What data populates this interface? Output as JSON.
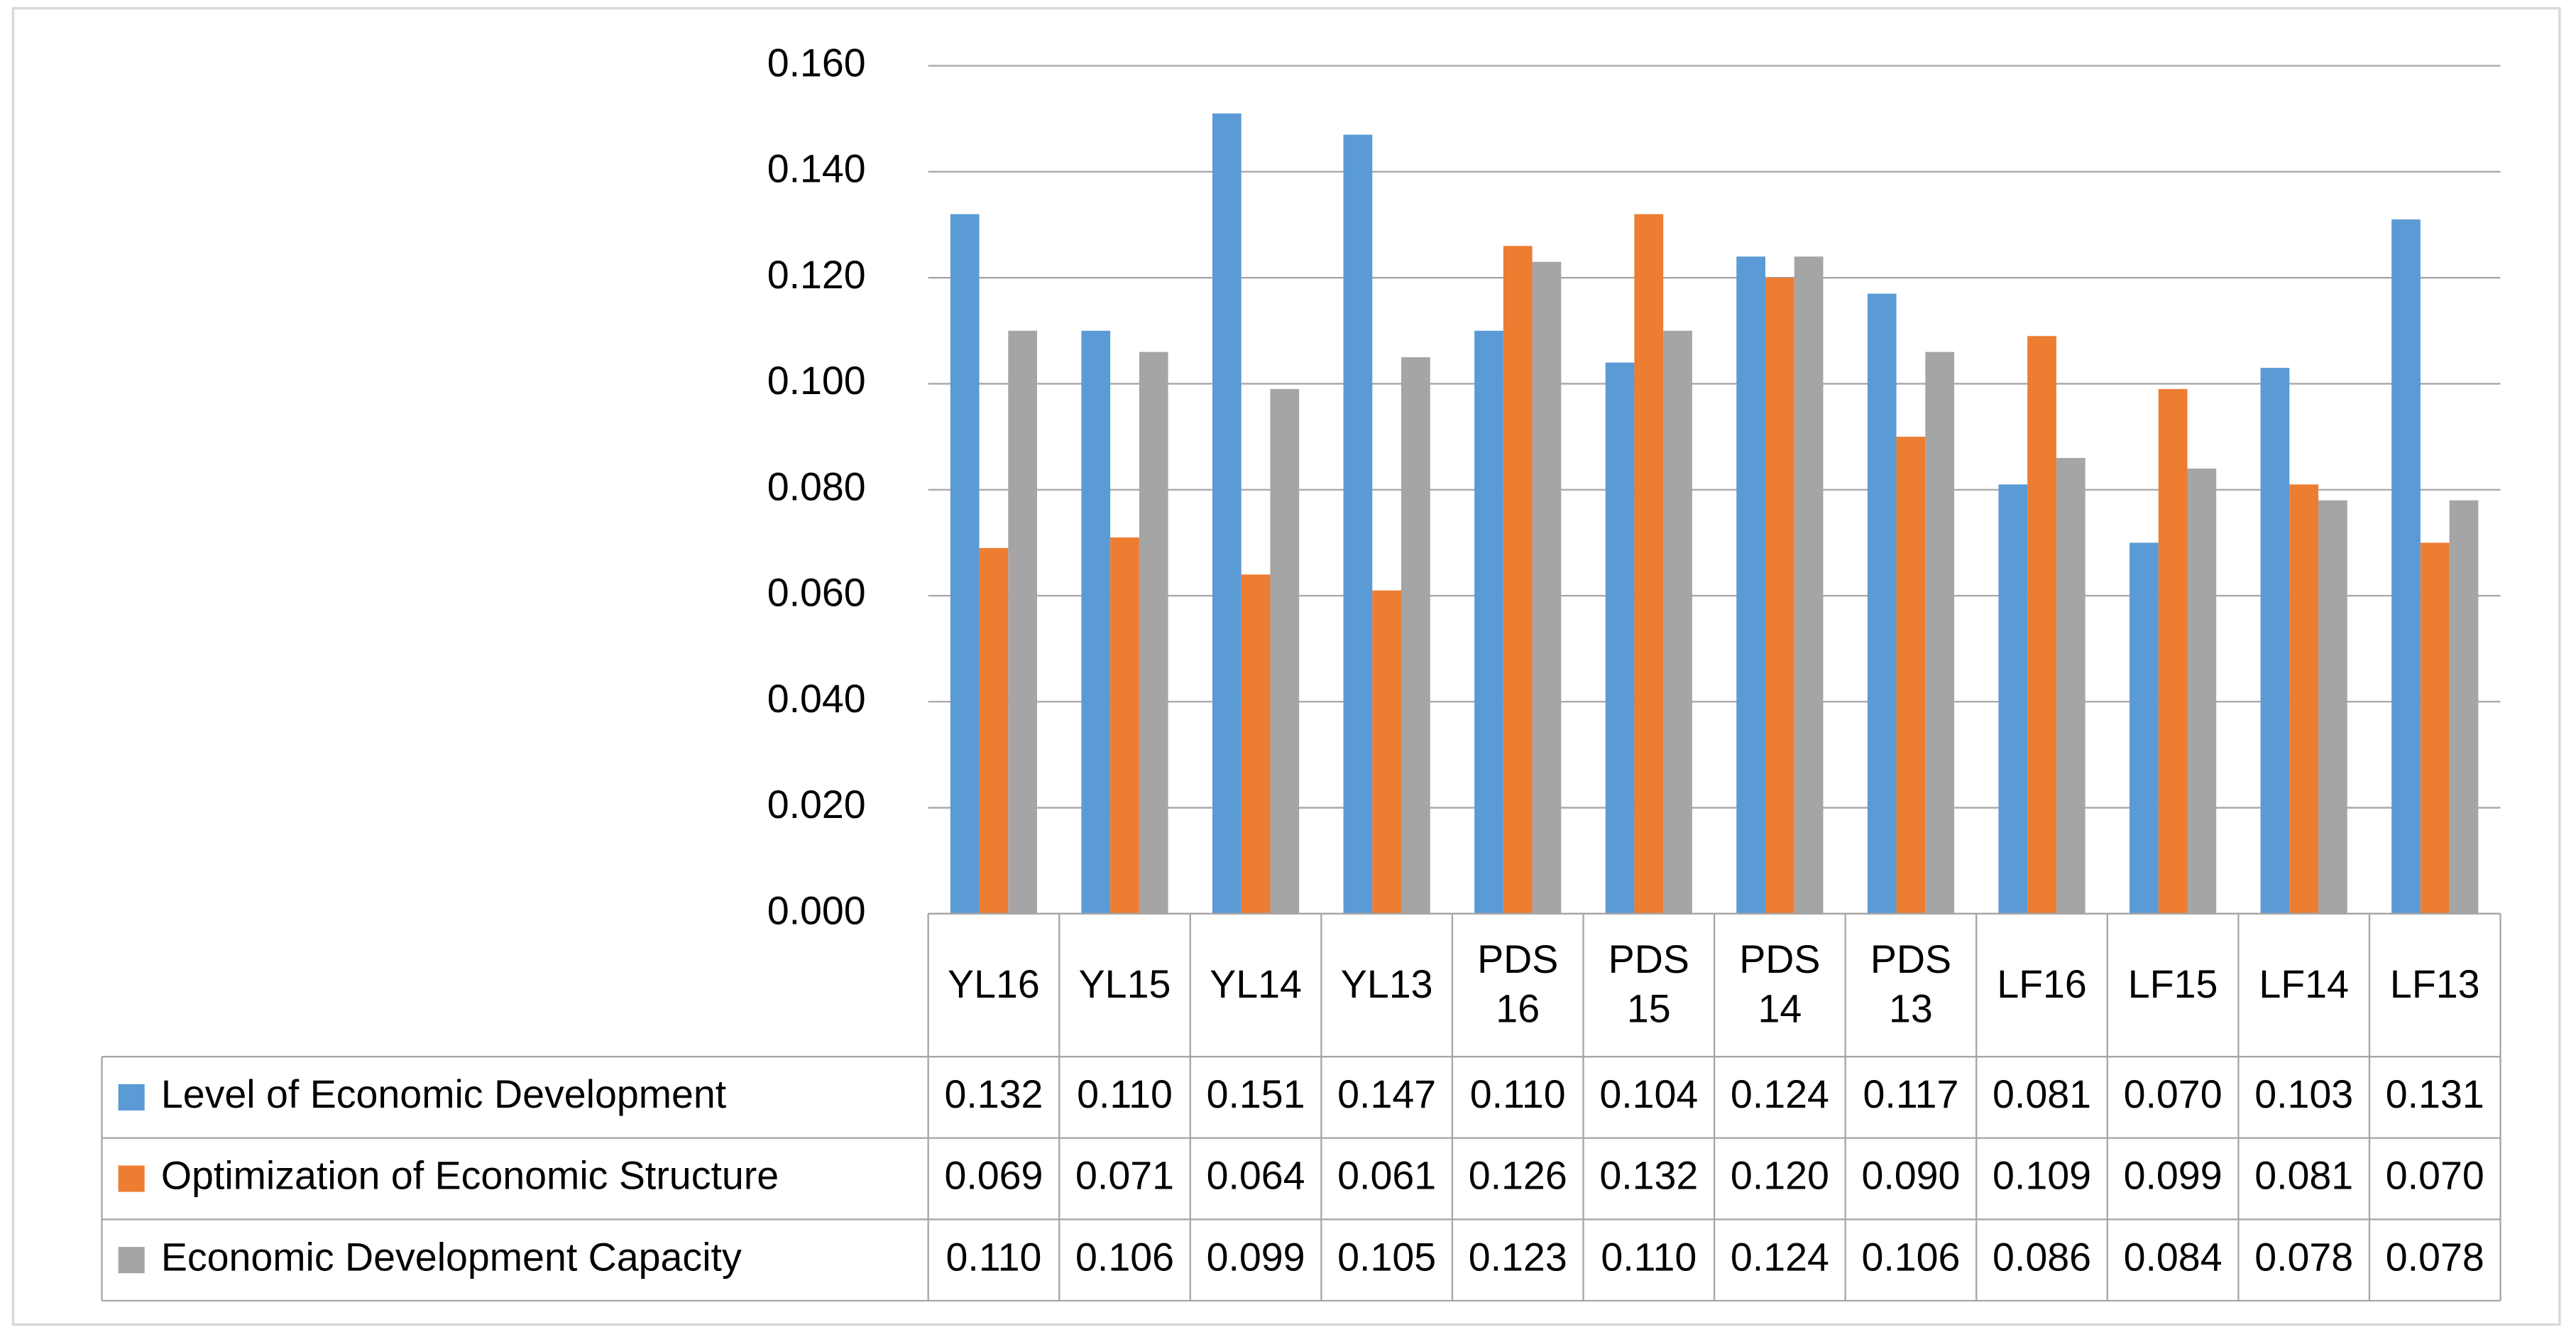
{
  "chart_data": {
    "type": "bar",
    "categories": [
      "YL16",
      "YL15",
      "YL14",
      "YL13",
      "PDS16",
      "PDS15",
      "PDS14",
      "PDS13",
      "LF16",
      "LF15",
      "LF14",
      "LF13"
    ],
    "series": [
      {
        "name": "Level of Economic Development",
        "color": "#5b9bd5",
        "values": [
          0.132,
          0.11,
          0.151,
          0.147,
          0.11,
          0.104,
          0.124,
          0.117,
          0.081,
          0.07,
          0.103,
          0.131
        ],
        "value_labels": [
          "0.132",
          "0.110",
          "0.151",
          "0.147",
          "0.110",
          "0.104",
          "0.124",
          "0.117",
          "0.081",
          "0.070",
          "0.103",
          "0.131"
        ]
      },
      {
        "name": "Optimization of Economic Structure",
        "color": "#ed7d31",
        "values": [
          0.069,
          0.071,
          0.064,
          0.061,
          0.126,
          0.132,
          0.12,
          0.09,
          0.109,
          0.099,
          0.081,
          0.07
        ],
        "value_labels": [
          "0.069",
          "0.071",
          "0.064",
          "0.061",
          "0.126",
          "0.132",
          "0.120",
          "0.090",
          "0.109",
          "0.099",
          "0.081",
          "0.070"
        ]
      },
      {
        "name": "Economic Development Capacity",
        "color": "#a5a5a5",
        "values": [
          0.11,
          0.106,
          0.099,
          0.105,
          0.123,
          0.11,
          0.124,
          0.106,
          0.086,
          0.084,
          0.078,
          0.078
        ],
        "value_labels": [
          "0.110",
          "0.106",
          "0.099",
          "0.105",
          "0.123",
          "0.110",
          "0.124",
          "0.106",
          "0.086",
          "0.084",
          "0.078",
          "0.078"
        ]
      }
    ],
    "ylim": [
      0,
      0.16
    ],
    "yticks": [
      {
        "value": 0,
        "label": "0.000"
      },
      {
        "value": 0.02,
        "label": "0.020"
      },
      {
        "value": 0.04,
        "label": "0.040"
      },
      {
        "value": 0.06,
        "label": "0.060"
      },
      {
        "value": 0.08,
        "label": "0.080"
      },
      {
        "value": 0.1,
        "label": "0.100"
      },
      {
        "value": 0.12,
        "label": "0.120"
      },
      {
        "value": 0.14,
        "label": "0.140"
      },
      {
        "value": 0.16,
        "label": "0.160"
      }
    ],
    "grid": true
  }
}
